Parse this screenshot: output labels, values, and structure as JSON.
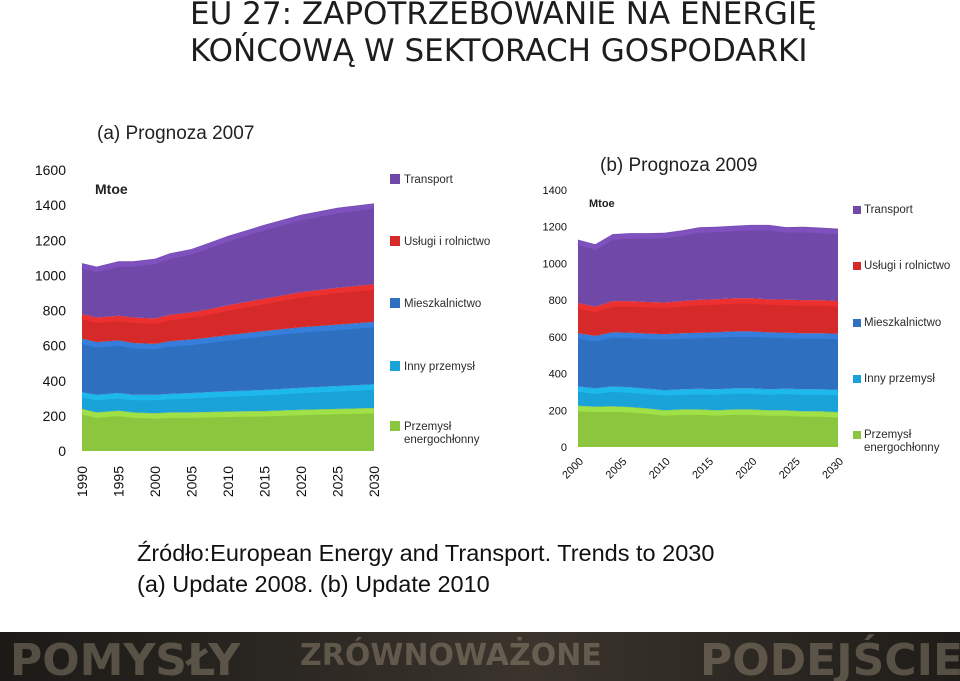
{
  "title_line1": "EU 27: ZAPOTRZEBOWANIE NA ENERGIĘ",
  "title_line2": "KOŃCOWĄ W SEKTORACH GOSPODARKI",
  "source_line1": "Źródło:European Energy and Transport. Trends to 2030",
  "source_line2": "(a) Update 2008. (b) Update 2010",
  "banner_words": [
    "POMYSŁY",
    "ZRÓWNOWAŻONE",
    "PODEJŚCIE"
  ],
  "colors": {
    "energy_sector": "#8cc63e",
    "other_industry": "#1aa3d8",
    "residential": "#2f6fc0",
    "services_agriculture": "#d62a2a",
    "transport": "#7048a8"
  },
  "chart_data": [
    {
      "type": "area",
      "stacked": true,
      "title": "(a) Prognoza 2007",
      "unit": "Mtoe",
      "ylim": [
        0,
        1600
      ],
      "yticks": [
        "0",
        "200",
        "400",
        "600",
        "800",
        "1000",
        "1200",
        "1400",
        "1600"
      ],
      "xticks": [
        "1990",
        "1995",
        "2000",
        "2005",
        "2010",
        "2015",
        "2020",
        "2025",
        "2030"
      ],
      "grid": false,
      "legend": "right",
      "x": [
        1990,
        1992,
        1995,
        1997,
        2000,
        2002,
        2005,
        2007,
        2010,
        2015,
        2020,
        2025,
        2030
      ],
      "series": [
        {
          "name": "Przemysł energochłonny",
          "values": [
            240,
            220,
            230,
            220,
            215,
            220,
            220,
            222,
            225,
            228,
            235,
            240,
            245
          ]
        },
        {
          "name": "Inny przemysł",
          "values": [
            95,
            100,
            100,
            100,
            105,
            105,
            110,
            112,
            115,
            120,
            125,
            130,
            135
          ]
        },
        {
          "name": "Mieszkalnictwo",
          "values": [
            305,
            300,
            300,
            295,
            290,
            300,
            305,
            310,
            320,
            335,
            345,
            350,
            355
          ]
        },
        {
          "name": "Usługi i rolnictwo",
          "values": [
            140,
            140,
            140,
            145,
            145,
            150,
            155,
            160,
            170,
            185,
            200,
            210,
            215
          ]
        },
        {
          "name": "Transport",
          "values": [
            290,
            290,
            310,
            320,
            340,
            350,
            360,
            375,
            395,
            420,
            440,
            455,
            460
          ]
        }
      ]
    },
    {
      "type": "area",
      "stacked": true,
      "title": "(b) Prognoza 2009",
      "unit": "Mtoe",
      "ylim": [
        0,
        1400
      ],
      "yticks": [
        "0",
        "200",
        "400",
        "600",
        "800",
        "1000",
        "1200",
        "1400"
      ],
      "xticks": [
        "2000",
        "2005",
        "2010",
        "2015",
        "2020",
        "2025",
        "2030"
      ],
      "grid": false,
      "legend": "right",
      "x": [
        2000,
        2002,
        2004,
        2006,
        2008,
        2010,
        2012,
        2014,
        2016,
        2018,
        2020,
        2022,
        2024,
        2026,
        2028,
        2030
      ],
      "series": [
        {
          "name": "Przemysł energochłonny",
          "values": [
            225,
            220,
            222,
            218,
            210,
            200,
            205,
            205,
            200,
            205,
            205,
            200,
            200,
            195,
            195,
            190
          ]
        },
        {
          "name": "Inny przemysł",
          "values": [
            105,
            100,
            108,
            108,
            108,
            110,
            110,
            112,
            115,
            115,
            115,
            115,
            118,
            120,
            120,
            122
          ]
        },
        {
          "name": "Mieszkalnictwo",
          "values": [
            290,
            285,
            295,
            297,
            300,
            305,
            305,
            305,
            310,
            310,
            310,
            310,
            305,
            305,
            305,
            305
          ]
        },
        {
          "name": "Usługi i rolnictwo",
          "values": [
            165,
            160,
            170,
            172,
            172,
            172,
            175,
            180,
            180,
            180,
            180,
            180,
            180,
            180,
            180,
            178
          ]
        },
        {
          "name": "Transport",
          "values": [
            345,
            340,
            365,
            370,
            375,
            380,
            385,
            395,
            395,
            395,
            400,
            405,
            395,
            400,
            395,
            395
          ]
        }
      ]
    }
  ]
}
